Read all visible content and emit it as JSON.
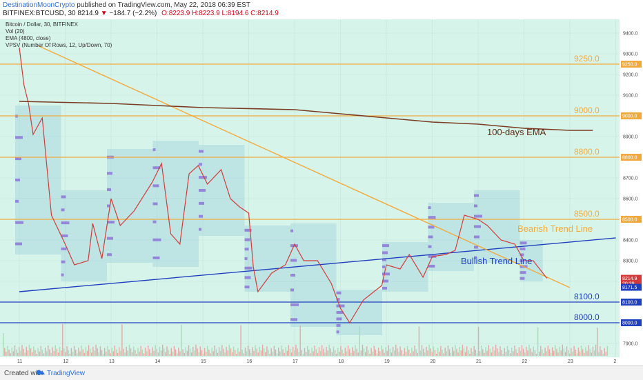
{
  "header": {
    "author": "DestinationMoonCrypto",
    "published": "published on TradingView.com, May 22, 2018 06:39 EST",
    "symbol": "BITFINEX:BTCUSD, 30",
    "last": "8214.9",
    "change": "−184.7 (−2.2%)",
    "open": "O:8223.9",
    "high": "H:8223.9",
    "low": "L:8194.6",
    "close": "C:8214.9"
  },
  "footer": {
    "created_with": "Created with",
    "brand": "TradingView"
  },
  "chart_data": {
    "type": "line",
    "legend": [
      "Bitcoin / Dollar, 30, BITFINEX",
      "Vol (20)",
      "EMA (4800, close)",
      "VPSV (Number Of Rows, 12, Up/Down, 70)"
    ],
    "x_ticks": [
      "11",
      "12",
      "13",
      "14",
      "15",
      "16",
      "17",
      "18",
      "19",
      "20",
      "21",
      "22",
      "23",
      "2"
    ],
    "y_ticks": [
      "9400.0",
      "9300.0",
      "9200.0",
      "9100.0",
      "9000.0",
      "8900.0",
      "8800.0",
      "8700.0",
      "8600.0",
      "8500.0",
      "8400.0",
      "8300.0",
      "8200.0",
      "8100.0",
      "8000.0",
      "7900.0"
    ],
    "ylim": [
      7850,
      9450
    ],
    "price_labels": [
      "9250.0",
      "9000.0",
      "8800.0",
      "8500.0",
      "8214.9",
      "20:39",
      "8171.5",
      "8100.0",
      "8000.0"
    ],
    "horizontal_levels": [
      {
        "label": "9250.0",
        "value": 9250,
        "color": "#f2a93b"
      },
      {
        "label": "9000.0",
        "value": 9000,
        "color": "#f2a93b"
      },
      {
        "label": "8800.0",
        "value": 8800,
        "color": "#f2a93b"
      },
      {
        "label": "8500.0",
        "value": 8500,
        "color": "#f2a93b"
      },
      {
        "label": "8100.0",
        "value": 8100,
        "color": "#1f3fbf"
      },
      {
        "label": "8000.0",
        "value": 8000,
        "color": "#1f3fbf"
      }
    ],
    "annotations": [
      "100-days EMA",
      "Bearish Trend Line",
      "Bullish Trend Line"
    ],
    "series": [
      {
        "name": "BTCUSD",
        "color": "#d43a3a",
        "values": [
          [
            0,
            9330
          ],
          [
            0.1,
            9150
          ],
          [
            0.2,
            9060
          ],
          [
            0.3,
            8910
          ],
          [
            0.5,
            8990
          ],
          [
            0.7,
            8520
          ],
          [
            1.0,
            8380
          ],
          [
            1.2,
            8280
          ],
          [
            1.5,
            8300
          ],
          [
            1.6,
            8480
          ],
          [
            1.8,
            8310
          ],
          [
            2.0,
            8600
          ],
          [
            2.2,
            8470
          ],
          [
            2.5,
            8540
          ],
          [
            2.9,
            8680
          ],
          [
            3.1,
            8770
          ],
          [
            3.3,
            8430
          ],
          [
            3.5,
            8380
          ],
          [
            3.7,
            8720
          ],
          [
            3.9,
            8760
          ],
          [
            4.1,
            8670
          ],
          [
            4.4,
            8740
          ],
          [
            4.6,
            8600
          ],
          [
            4.8,
            8560
          ],
          [
            5.0,
            8530
          ],
          [
            5.1,
            8270
          ],
          [
            5.2,
            8150
          ],
          [
            5.5,
            8240
          ],
          [
            5.8,
            8280
          ],
          [
            6.0,
            8380
          ],
          [
            6.2,
            8300
          ],
          [
            6.5,
            8300
          ],
          [
            6.8,
            8190
          ],
          [
            7.0,
            8070
          ],
          [
            7.2,
            8000
          ],
          [
            7.5,
            8110
          ],
          [
            7.9,
            8180
          ],
          [
            8.0,
            8280
          ],
          [
            8.3,
            8260
          ],
          [
            8.5,
            8330
          ],
          [
            8.8,
            8220
          ],
          [
            9.0,
            8320
          ],
          [
            9.3,
            8330
          ],
          [
            9.5,
            8350
          ],
          [
            9.7,
            8520
          ],
          [
            10.0,
            8500
          ],
          [
            10.2,
            8470
          ],
          [
            10.5,
            8400
          ],
          [
            10.8,
            8380
          ],
          [
            11.0,
            8300
          ],
          [
            11.2,
            8300
          ],
          [
            11.5,
            8215
          ]
        ]
      },
      {
        "name": "EMA",
        "color": "#7a3b22",
        "values": [
          [
            0,
            9070
          ],
          [
            2,
            9060
          ],
          [
            4,
            9040
          ],
          [
            6,
            9030
          ],
          [
            7,
            9010
          ],
          [
            8,
            8990
          ],
          [
            9,
            8970
          ],
          [
            10,
            8960
          ],
          [
            11,
            8940
          ],
          [
            12,
            8930
          ],
          [
            12.5,
            8930
          ]
        ]
      }
    ],
    "trend_lines": [
      {
        "name": "Bullish Trend Line",
        "from": [
          0,
          8150
        ],
        "to": [
          13,
          8410
        ],
        "color": "#1f3fbf"
      },
      {
        "name": "Bearish Trend Line",
        "from": [
          0.4,
          9340
        ],
        "to": [
          12,
          8170
        ],
        "color": "#f2a93b"
      }
    ],
    "grid": true
  },
  "colors": {
    "background": "#d7f4ea",
    "up": "#3fb86c",
    "down": "#d43a3a",
    "support": "#1f3fbf",
    "resistance": "#f2a93b"
  }
}
